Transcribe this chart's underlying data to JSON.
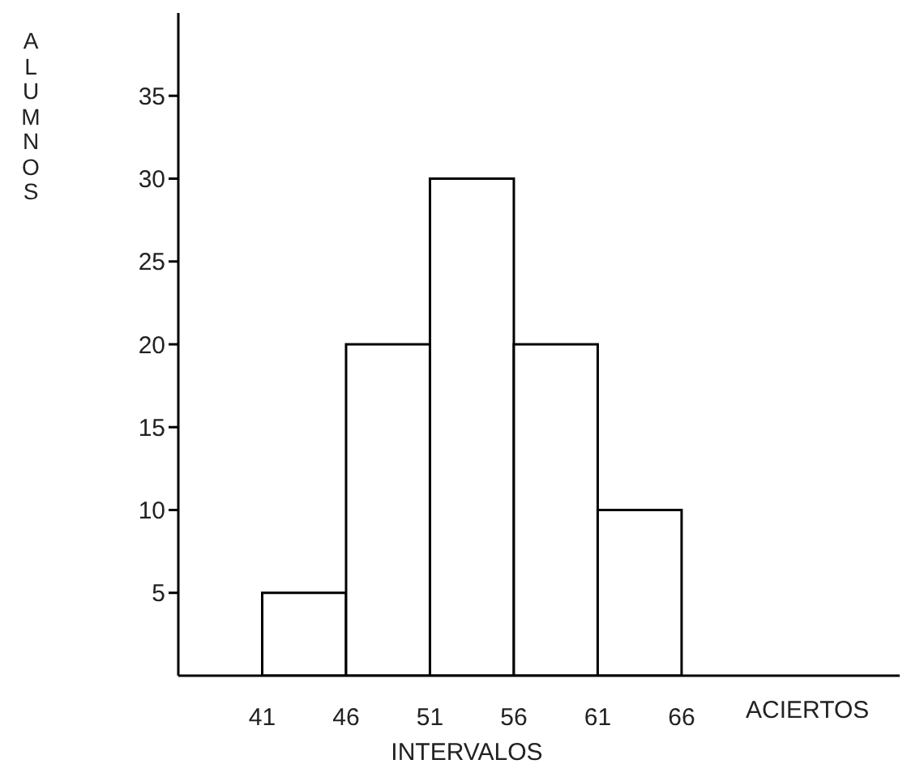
{
  "chart_data": {
    "type": "histogram",
    "xlabel": "INTERVALOS",
    "ylabel": "ALUMNOS",
    "annotations": [
      "ACIERTOS"
    ],
    "bins": [
      41,
      46,
      51,
      56,
      61,
      66
    ],
    "values": [
      5,
      20,
      30,
      20,
      10
    ],
    "color": "#ffffff",
    "xlim": [
      36,
      79
    ],
    "xticks": [
      41,
      46,
      51,
      56,
      61,
      66
    ],
    "ylim": [
      0,
      40
    ],
    "yticks": [
      5,
      10,
      15,
      20,
      25,
      30,
      35
    ],
    "grid": false,
    "legend": false
  }
}
